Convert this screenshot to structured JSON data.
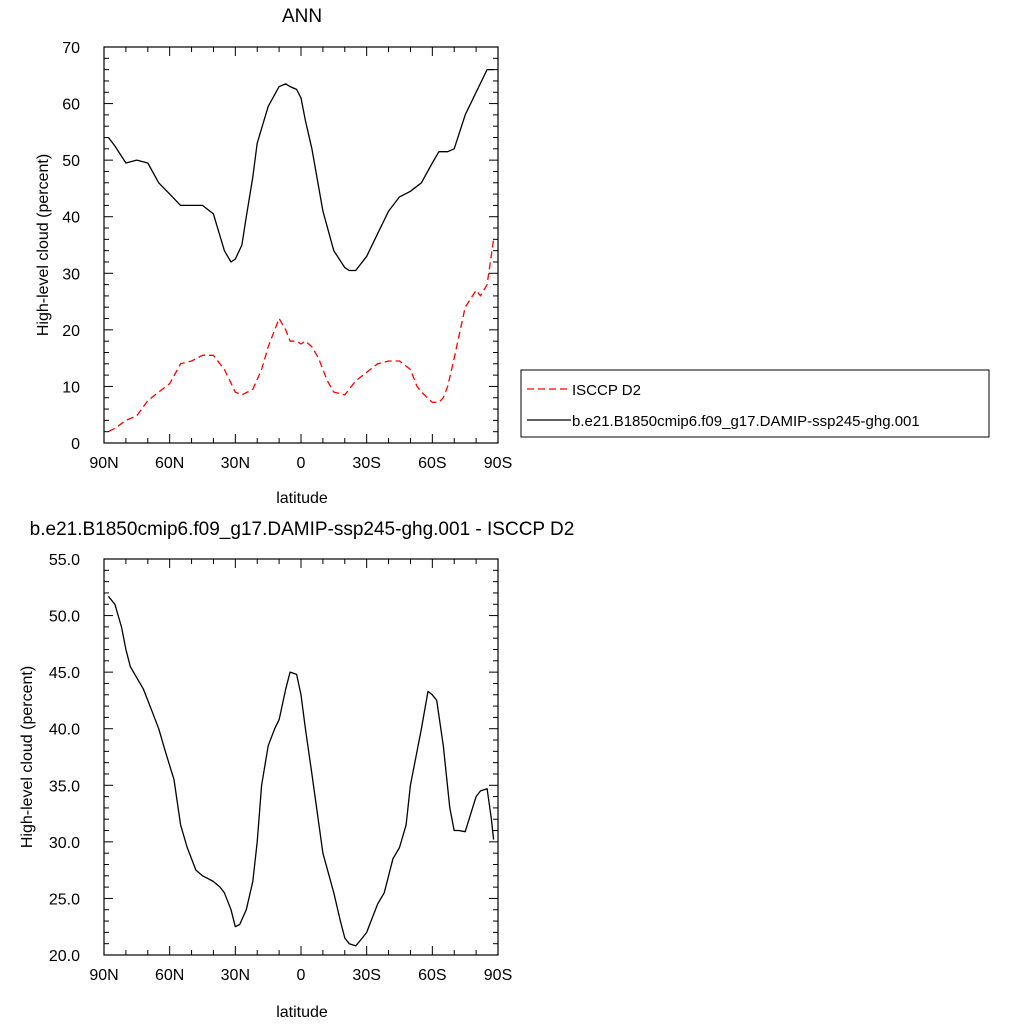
{
  "chart_data": [
    {
      "type": "line",
      "title": "ANN",
      "xlabel": "latitude",
      "ylabel": "High-level cloud (percent)",
      "xlim": [
        90,
        -90
      ],
      "ylim": [
        0,
        70
      ],
      "xticks": [
        90,
        60,
        30,
        0,
        -30,
        -60,
        -90
      ],
      "xtick_labels": [
        "90N",
        "60N",
        "30N",
        "0",
        "30S",
        "60S",
        "90S"
      ],
      "yticks": [
        0,
        10,
        20,
        30,
        40,
        50,
        60,
        70
      ],
      "ytick_labels": [
        "0",
        "10",
        "20",
        "30",
        "40",
        "50",
        "60",
        "70"
      ],
      "grid": false,
      "legend_position": "right",
      "series": [
        {
          "name": "ISCCP D2",
          "color": "#ff0000",
          "style": "dashed",
          "x": [
            88,
            85,
            80,
            75,
            70,
            65,
            60,
            55,
            50,
            45,
            40,
            35,
            30,
            27,
            22,
            18,
            15,
            10,
            7,
            5,
            2,
            0,
            -2,
            -5,
            -8,
            -12,
            -15,
            -20,
            -22,
            -25,
            -30,
            -35,
            -40,
            -45,
            -50,
            -53,
            -55,
            -60,
            -63,
            -65,
            -67,
            -70,
            -75,
            -80,
            -82,
            -85,
            -88
          ],
          "y": [
            2,
            2.6,
            4,
            4.8,
            7.5,
            9,
            10.5,
            14,
            14.5,
            15.5,
            15.5,
            13,
            9,
            8.5,
            9.5,
            13,
            17,
            22,
            20,
            18,
            18,
            17.5,
            18,
            17,
            15,
            11,
            9,
            8.5,
            9.5,
            11,
            12.5,
            14,
            14.5,
            14.5,
            13,
            10,
            9,
            7.2,
            7.2,
            8,
            10,
            15,
            24,
            27,
            26,
            28,
            36
          ]
        },
        {
          "name": "b.e21.B1850cmip6.f09_g17.DAMIP-ssp245-ghg.001",
          "color": "#000000",
          "style": "solid",
          "x": [
            88,
            85,
            80,
            75,
            70,
            65,
            60,
            55,
            50,
            45,
            40,
            35,
            32,
            30,
            27,
            25,
            22,
            20,
            15,
            10,
            7,
            5,
            2,
            0,
            -2,
            -5,
            -10,
            -15,
            -20,
            -22,
            -25,
            -30,
            -35,
            -40,
            -45,
            -50,
            -55,
            -60,
            -63,
            -65,
            -67,
            -70,
            -75,
            -80,
            -85,
            -88
          ],
          "y": [
            54,
            52.5,
            49.5,
            50,
            49.5,
            46,
            44,
            42,
            42,
            42,
            40.5,
            34,
            32,
            32.5,
            35,
            40,
            47,
            53,
            59.5,
            63,
            63.5,
            63,
            62.5,
            61,
            57,
            52,
            41,
            34,
            31,
            30.5,
            30.5,
            33,
            37,
            41,
            43.5,
            44.5,
            46,
            49.5,
            51.5,
            51.5,
            51.5,
            52,
            58,
            62,
            66,
            66
          ]
        }
      ]
    },
    {
      "type": "line",
      "title": "b.e21.B1850cmip6.f09_g17.DAMIP-ssp245-ghg.001 - ISCCP D2",
      "xlabel": "latitude",
      "ylabel": "High-level cloud (percent)",
      "xlim": [
        90,
        -90
      ],
      "ylim": [
        20,
        55
      ],
      "xticks": [
        90,
        60,
        30,
        0,
        -30,
        -60,
        -90
      ],
      "xtick_labels": [
        "90N",
        "60N",
        "30N",
        "0",
        "30S",
        "60S",
        "90S"
      ],
      "yticks": [
        20,
        25,
        30,
        35,
        40,
        45,
        50,
        55
      ],
      "ytick_labels": [
        "20.0",
        "25.0",
        "30.0",
        "35.0",
        "40.0",
        "45.0",
        "50.0",
        "55.0"
      ],
      "grid": false,
      "series": [
        {
          "color": "#000000",
          "style": "solid",
          "x": [
            88,
            85,
            82,
            80,
            78,
            75,
            72,
            70,
            68,
            65,
            62,
            58,
            55,
            52,
            48,
            45,
            42,
            40,
            37,
            35,
            32,
            30,
            28,
            25,
            22,
            20,
            18,
            15,
            12,
            10,
            7,
            5,
            2,
            0,
            -2,
            -5,
            -10,
            -15,
            -18,
            -20,
            -22,
            -25,
            -28,
            -30,
            -32,
            -35,
            -38,
            -40,
            -42,
            -45,
            -48,
            -50,
            -52,
            -55,
            -58,
            -60,
            -62,
            -65,
            -68,
            -70,
            -72,
            -75,
            -80,
            -82,
            -85,
            -87,
            -88
          ],
          "y": [
            51.7,
            51,
            49,
            47,
            45.5,
            44.5,
            43.5,
            42.5,
            41.5,
            40,
            38,
            35.5,
            31.5,
            29.5,
            27.5,
            27,
            26.7,
            26.5,
            26,
            25.5,
            24,
            22.5,
            22.7,
            24,
            26.5,
            30,
            35,
            38.5,
            40,
            40.8,
            43.5,
            45,
            44.8,
            43,
            40,
            36,
            29,
            25.5,
            23,
            21.5,
            21,
            20.8,
            21.5,
            22,
            23,
            24.5,
            25.5,
            27,
            28.5,
            29.5,
            31.5,
            35,
            37,
            40,
            43.3,
            43,
            42.5,
            38.5,
            33,
            31,
            31,
            30.9,
            34,
            34.5,
            34.7,
            32,
            30.2
          ]
        }
      ]
    }
  ]
}
